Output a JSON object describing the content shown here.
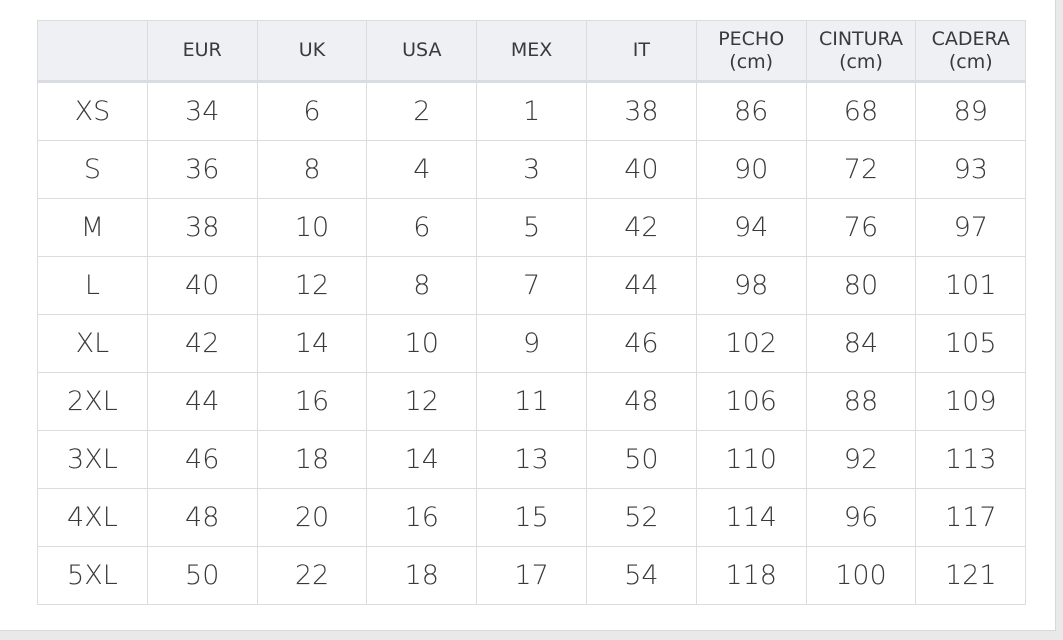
{
  "table": {
    "header": [
      "EUR",
      "UK",
      "USA",
      "MEX",
      "IT",
      "PECHO\n(cm)",
      "CINTURA\n(cm)",
      "CADERA\n(cm)"
    ],
    "rows": [
      [
        "XS",
        34,
        6,
        2,
        1,
        38,
        86,
        68,
        89
      ],
      [
        "S",
        36,
        8,
        4,
        3,
        40,
        90,
        72,
        93
      ],
      [
        "M",
        38,
        10,
        6,
        5,
        42,
        94,
        76,
        97
      ],
      [
        "L",
        40,
        12,
        8,
        7,
        44,
        98,
        80,
        101
      ],
      [
        "XL",
        42,
        14,
        10,
        9,
        46,
        102,
        84,
        105
      ],
      [
        "2XL",
        44,
        16,
        12,
        11,
        48,
        106,
        88,
        109
      ],
      [
        "3XL",
        46,
        18,
        14,
        13,
        50,
        110,
        92,
        113
      ],
      [
        "4XL",
        48,
        20,
        16,
        15,
        52,
        114,
        96,
        117
      ],
      [
        "5XL",
        50,
        22,
        18,
        17,
        54,
        118,
        100,
        121
      ]
    ]
  }
}
